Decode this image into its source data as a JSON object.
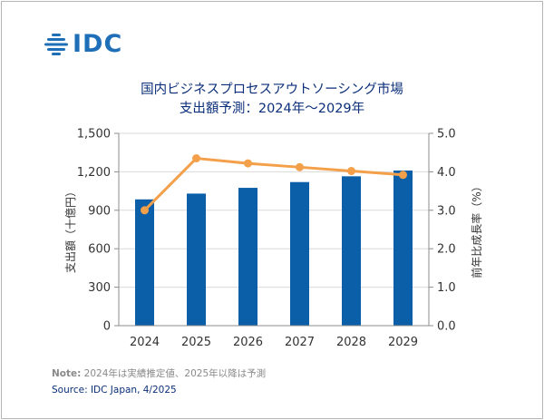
{
  "logo": {
    "text": "IDC"
  },
  "header": {
    "title_line1": "国内ビジネスプロセスアウトソーシング市場",
    "title_line2": "支出額予測：2024年～2029年"
  },
  "chart_data": {
    "type": "bar",
    "categories": [
      "2024",
      "2025",
      "2026",
      "2027",
      "2028",
      "2029"
    ],
    "series": [
      {
        "type": "bar",
        "axis": "left",
        "color": "#0b5ea8",
        "values": [
          985,
          1030,
          1075,
          1120,
          1165,
          1210
        ]
      },
      {
        "type": "line",
        "axis": "right",
        "color": "#f4a04a",
        "values": [
          3.0,
          4.35,
          4.22,
          4.12,
          4.02,
          3.92
        ]
      }
    ],
    "ylabel": "支出額（十億円）",
    "y2label": "前年比成長率（%）",
    "ylim": [
      0,
      1500
    ],
    "y2lim": [
      0,
      5.0
    ],
    "yticks": [
      "0",
      "300",
      "600",
      "900",
      "1,200",
      "1,500"
    ],
    "y2ticks": [
      "0.0",
      "1.0",
      "2.0",
      "3.0",
      "4.0",
      "5.0"
    ],
    "grid": true
  },
  "footer": {
    "note_label": "Note:",
    "note_text": " 2024年は実績推定値、2025年以降は予測",
    "source": "Source: IDC Japan, 4/2025"
  }
}
